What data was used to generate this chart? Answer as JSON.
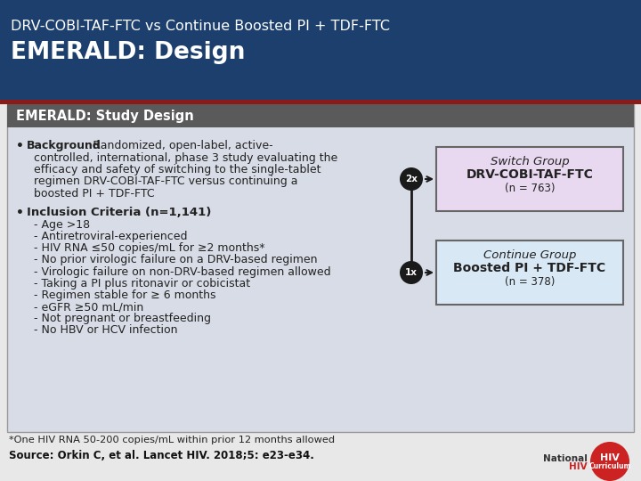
{
  "title_line1": "DRV-COBI-TAF-FTC vs Continue Boosted PI + TDF-FTC",
  "title_line2": "EMERALD: Design",
  "header_bg": "#1c3f6e",
  "header_text_color": "#ffffff",
  "red_bar_color": "#8b1a1a",
  "section_header": "EMERALD: Study Design",
  "section_header_bg": "#5a5a5a",
  "section_header_text": "#ffffff",
  "content_bg": "#d8dce6",
  "background_color": "#e8e8e8",
  "bullet1_bold": "Background",
  "bullet1_rest_line1": ": Randomized, open-label, active-",
  "bullet1_rest_lines": [
    "controlled, international, phase 3 study evaluating the",
    "efficacy and safety of switching to the single-tablet",
    "regimen DRV-COBI-TAF-FTC versus continuing a",
    "boosted PI + TDF-FTC"
  ],
  "bullet2_bold": "Inclusion Criteria (n=1,141)",
  "criteria": [
    "- Age >18",
    "- Antiretroviral-experienced",
    "- HIV RNA ≤50 copies/mL for ≥2 months*",
    "- No prior virologic failure on a DRV-based regimen",
    "- Virologic failure on non-DRV-based regimen allowed",
    "- Taking a PI plus ritonavir or cobicistat",
    "- Regimen stable for ≥ 6 months",
    "- eGFR ≥50 mL/min",
    "- Not pregnant or breastfeeding",
    "- No HBV or HCV infection"
  ],
  "footnote": "*One HIV RNA 50-200 copies/mL within prior 12 months allowed",
  "source": "Source: Orkin C, et al. Lancet HIV. 2018;5: e23-e34.",
  "box1_title_italic": "Switch Group",
  "box1_bold": "DRV-COBI-TAF-FTC",
  "box1_n": "(n = 763)",
  "box1_bg": "#e8d8f0",
  "box1_border": "#666666",
  "box2_title_italic": "Continue Group",
  "box2_bold": "Boosted PI + TDF-FTC",
  "box2_n": "(n = 378)",
  "box2_bg": "#d8e8f5",
  "box2_border": "#666666",
  "ratio_label1": "2x",
  "ratio_label2": "1x",
  "circle_color": "#1a1a1a",
  "circle_text_color": "#ffffff"
}
